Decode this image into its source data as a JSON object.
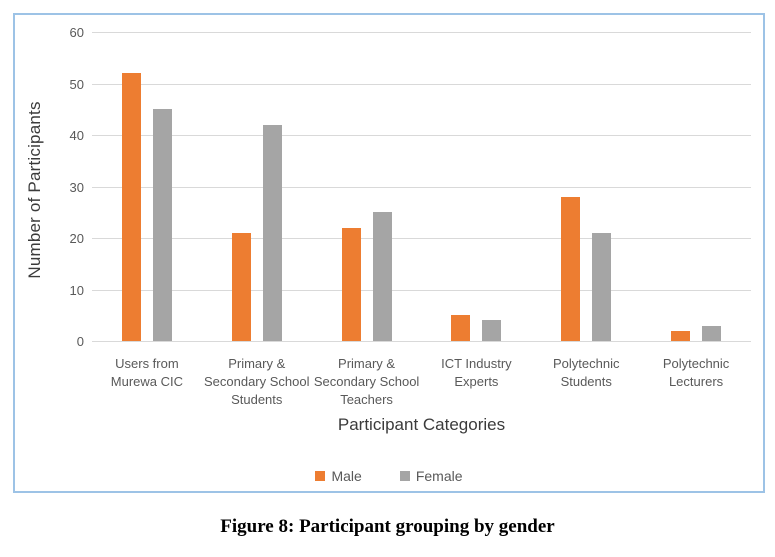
{
  "chart_data": {
    "type": "bar",
    "title": "",
    "categories": [
      "Users from Murewa CIC",
      "Primary & Secondary School Students",
      "Primary & Secondary School Teachers",
      "ICT Industry Experts",
      "Polytechnic Students",
      "Polytechnic Lecturers"
    ],
    "series": [
      {
        "name": "Male",
        "color": "#ED7D31",
        "values": [
          52,
          21,
          22,
          5,
          28,
          2
        ]
      },
      {
        "name": "Female",
        "color": "#A5A5A5",
        "values": [
          45,
          42,
          25,
          4,
          21,
          3
        ]
      }
    ],
    "xlabel": "Participant Categories",
    "ylabel": "Number of Participants",
    "ylim": [
      0,
      60
    ],
    "yticks": [
      0,
      10,
      20,
      30,
      40,
      50,
      60
    ],
    "grid": true,
    "legend_position": "bottom"
  },
  "caption": "Figure 8: Participant grouping by gender",
  "colors": {
    "male": "#ED7D31",
    "female": "#A5A5A5",
    "gridline": "#D9D9D9",
    "tick_label": "#595959",
    "axis_title": "#3B3B3B",
    "chart_border": "#9DC3E6",
    "background": "#FFFFFF"
  }
}
